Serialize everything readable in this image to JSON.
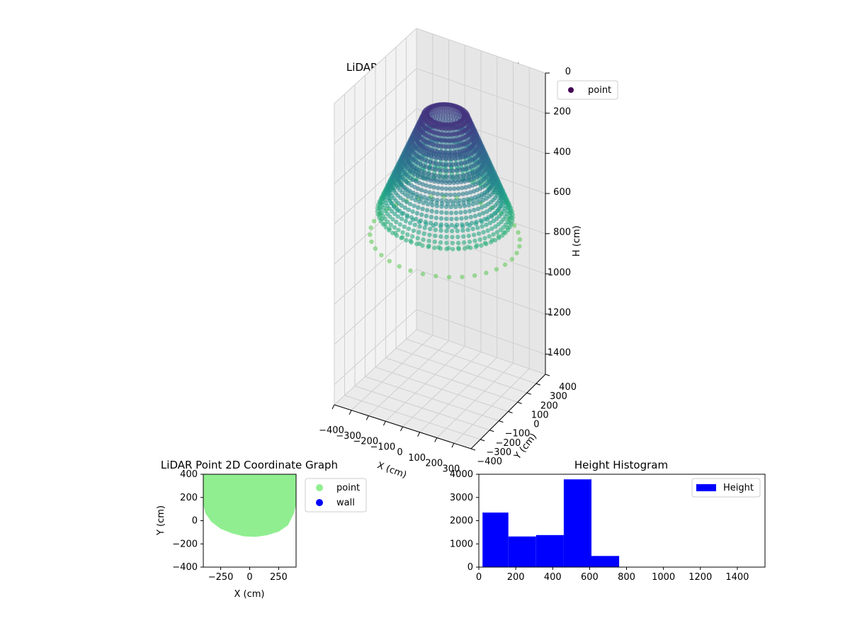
{
  "chart_data": [
    {
      "type": "scatter",
      "projection": "3d",
      "title": "LiDAR Point 3D Coordinate Graph",
      "xlabel": "X (cm)",
      "ylabel": "Y (cm)",
      "zlabel": "H (cm)",
      "xlim": [
        -400,
        400
      ],
      "ylim": [
        -400,
        400
      ],
      "zlim": [
        1500,
        0
      ],
      "z_inverted": true,
      "x_ticks": [
        "−400",
        "−300",
        "−200",
        "−100",
        "0",
        "100",
        "200",
        "300"
      ],
      "y_ticks": [
        "−400",
        "−300",
        "−200",
        "−100",
        "0",
        "100",
        "200",
        "300",
        "400"
      ],
      "z_ticks": [
        "0",
        "200",
        "400",
        "600",
        "800",
        "1000",
        "1200",
        "1400"
      ],
      "colormap": "viridis (color by height)",
      "grid": true,
      "legend": {
        "position": "top-right",
        "entries": [
          "point"
        ]
      },
      "series": [
        {
          "name": "point",
          "color": "#440154",
          "description_points": {
            "ring_radius": [
              100,
              150,
              200,
              250,
              300,
              350,
              400
            ],
            "height_at_ring": [
              150,
              280,
              380,
              470,
              560,
              640,
              760
            ]
          }
        }
      ]
    },
    {
      "type": "scatter",
      "title": "LiDAR Point 2D Coordinate Graph",
      "xlabel": "X (cm)",
      "ylabel": "Y (cm)",
      "xlim": [
        -400,
        400
      ],
      "ylim": [
        -400,
        400
      ],
      "x_ticks": [
        -250,
        0,
        250
      ],
      "y_ticks": [
        -400,
        -200,
        0,
        200,
        400
      ],
      "legend": {
        "position": "outside-right",
        "entries": [
          "point",
          "wall"
        ]
      },
      "series": [
        {
          "name": "point",
          "color": "#90ee90",
          "boundary": [
            [
              -400,
              400
            ],
            [
              -400,
              140
            ],
            [
              -380,
              60
            ],
            [
              -330,
              -10
            ],
            [
              -250,
              -70
            ],
            [
              -150,
              -110
            ],
            [
              -50,
              -135
            ],
            [
              50,
              -140
            ],
            [
              150,
              -125
            ],
            [
              250,
              -95
            ],
            [
              330,
              -40
            ],
            [
              380,
              60
            ],
            [
              400,
              140
            ],
            [
              400,
              400
            ]
          ]
        },
        {
          "name": "wall",
          "color": "#0000ff",
          "values": []
        }
      ]
    },
    {
      "type": "bar",
      "subtype": "histogram",
      "title": "Height Histogram",
      "xlabel": "",
      "ylabel": "",
      "xlim": [
        0,
        1550
      ],
      "ylim": [
        0,
        4000
      ],
      "x_ticks": [
        0,
        200,
        400,
        600,
        800,
        1000,
        1200,
        1400
      ],
      "y_ticks": [
        0,
        1000,
        2000,
        3000,
        4000
      ],
      "legend": {
        "position": "top-right",
        "entries": [
          "Height"
        ]
      },
      "series": [
        {
          "name": "Height",
          "color": "#0000ff",
          "bins": [
            {
              "start": 20,
              "end": 160,
              "count": 2350
            },
            {
              "start": 160,
              "end": 310,
              "count": 1320
            },
            {
              "start": 310,
              "end": 460,
              "count": 1380
            },
            {
              "start": 460,
              "end": 610,
              "count": 3780
            },
            {
              "start": 610,
              "end": 760,
              "count": 480
            }
          ]
        }
      ]
    }
  ]
}
